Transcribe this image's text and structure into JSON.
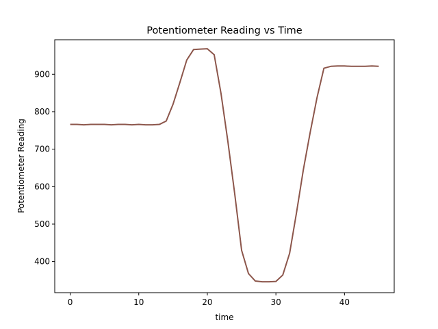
{
  "chart_data": {
    "type": "line",
    "title": "Potentiometer Reading vs Time",
    "xlabel": "time",
    "ylabel": "Potentiometer Reading",
    "xlim": [
      -2.25,
      47.25
    ],
    "ylim": [
      317,
      992
    ],
    "xticks": [
      0,
      10,
      20,
      30,
      40
    ],
    "yticks": [
      400,
      500,
      600,
      700,
      800,
      900
    ],
    "grid": false,
    "series": [
      {
        "color": "#8c564b",
        "x": [
          0,
          1,
          2,
          3,
          4,
          5,
          6,
          7,
          8,
          9,
          10,
          11,
          12,
          13,
          14,
          15,
          16,
          17,
          18,
          19,
          20,
          21,
          22,
          23,
          24,
          25,
          26,
          27,
          28,
          29,
          30,
          31,
          32,
          33,
          34,
          35,
          36,
          37,
          38,
          39,
          40,
          41,
          42,
          43,
          44,
          45
        ],
        "y": [
          766,
          766,
          765,
          766,
          766,
          766,
          765,
          766,
          766,
          765,
          766,
          765,
          765,
          766,
          775,
          820,
          878,
          938,
          966,
          967,
          968,
          952,
          848,
          720,
          580,
          430,
          368,
          348,
          346,
          346,
          347,
          364,
          422,
          530,
          645,
          745,
          838,
          916,
          921,
          922,
          922,
          921,
          921,
          921,
          922,
          921
        ]
      }
    ]
  }
}
